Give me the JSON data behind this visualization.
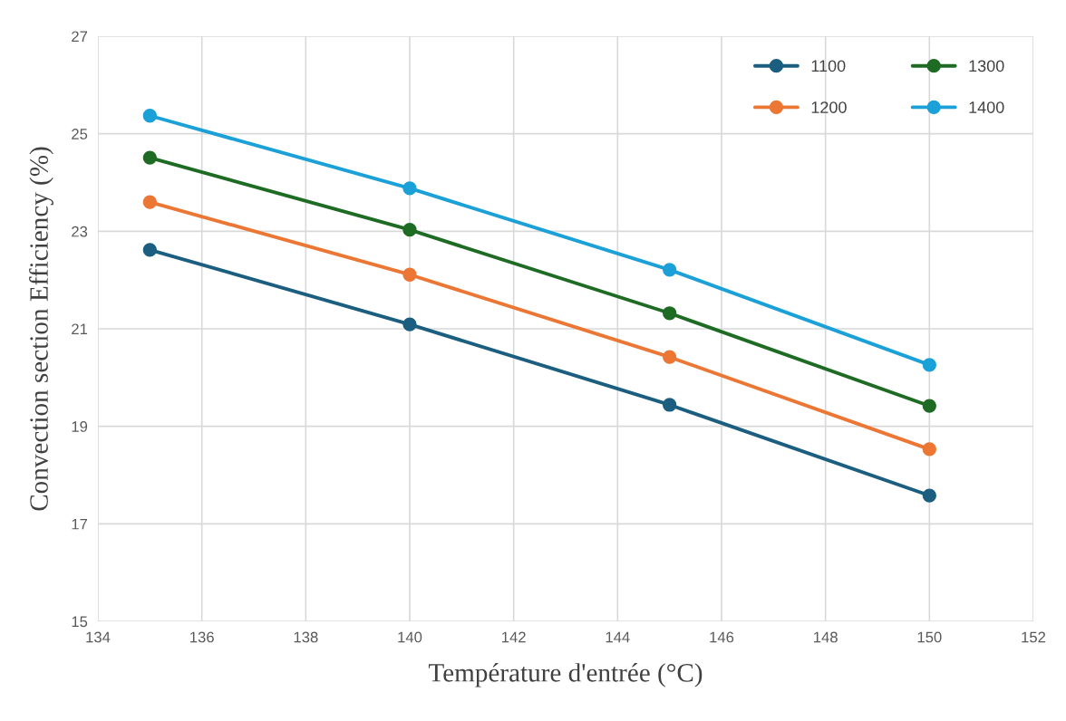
{
  "chart_data": {
    "type": "line",
    "xlabel": "Température d'entrée (°C)",
    "ylabel": "Convection section Efficiency (%)",
    "x": [
      135,
      140,
      145,
      150
    ],
    "series": [
      {
        "name": "1100",
        "color": "#1b5e80",
        "values": [
          22.62,
          21.09,
          19.44,
          17.58
        ]
      },
      {
        "name": "1200",
        "color": "#ec7634",
        "values": [
          23.6,
          22.11,
          20.42,
          18.53
        ]
      },
      {
        "name": "1300",
        "color": "#1e6b24",
        "values": [
          24.51,
          23.03,
          21.32,
          19.42
        ]
      },
      {
        "name": "1400",
        "color": "#1ba0d8",
        "values": [
          25.37,
          23.88,
          22.21,
          20.26
        ]
      }
    ],
    "xlim": [
      134,
      152
    ],
    "xticks": [
      134,
      136,
      138,
      140,
      142,
      144,
      146,
      148,
      150,
      152
    ],
    "ylim": [
      15,
      27
    ],
    "yticks": [
      15,
      17,
      19,
      21,
      23,
      25,
      27
    ],
    "grid": true,
    "legend": "top right",
    "marker": "circle",
    "line_style": "solid"
  }
}
